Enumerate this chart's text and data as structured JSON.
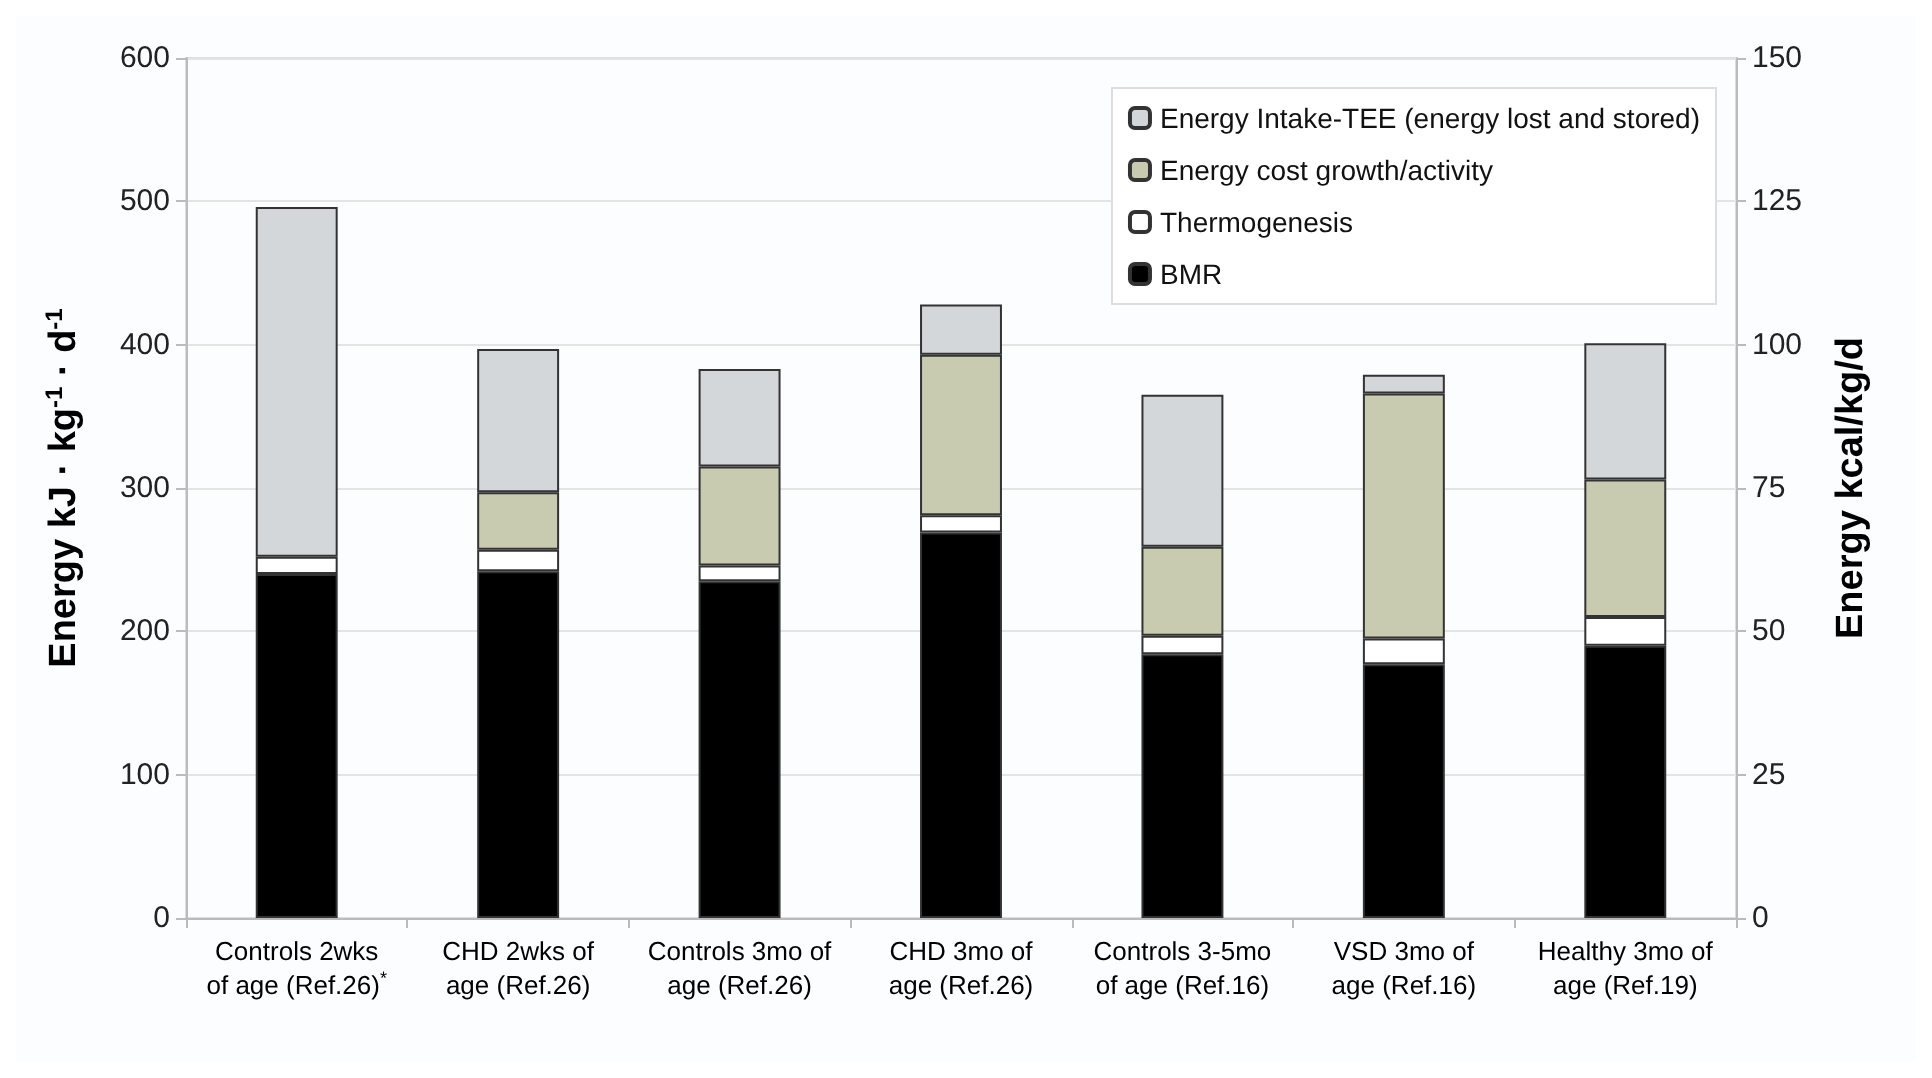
{
  "chart_data": {
    "type": "bar",
    "stacked": true,
    "categories": [
      "Controls 2wks of age (Ref.26)$^{*}$",
      "CHD 2wks of age (Ref.26)",
      "Controls 3mo of age (Ref.26)",
      "CHD 3mo of age (Ref.26)",
      "Controls 3-5mo of age (Ref.16)",
      "VSD 3mo of age (Ref.16)",
      "Healthy 3mo of age (Ref.19)"
    ],
    "series": [
      {
        "name": "BMR",
        "color": "#000000",
        "values": [
          240,
          242,
          235,
          269,
          184,
          177,
          190
        ]
      },
      {
        "name": "Thermogenesis",
        "color": "#ffffff",
        "values": [
          12,
          15,
          11,
          12,
          13,
          18,
          20
        ]
      },
      {
        "name": "Energy cost growth/activity",
        "color": "#c8cbb0",
        "values": [
          null,
          40,
          69,
          112,
          62,
          171,
          96
        ]
      },
      {
        "name": "Energy Intake-TEE (energy lost and stored)",
        "color": "#d4d7d9",
        "values": [
          244,
          100,
          68,
          35,
          106,
          13,
          95
        ]
      }
    ],
    "ylabel": "Energy kJ · kg$^{-1}$ · d$^{-1}$",
    "y2label": "Energy kcal/kg/d",
    "ylim": [
      0,
      600
    ],
    "yticks": [
      0,
      100,
      200,
      300,
      400,
      500,
      600
    ],
    "y2lim": [
      0,
      150
    ],
    "y2ticks": [
      0,
      25,
      50,
      75,
      100,
      125,
      150
    ],
    "grid": "y",
    "legend": "top right"
  }
}
